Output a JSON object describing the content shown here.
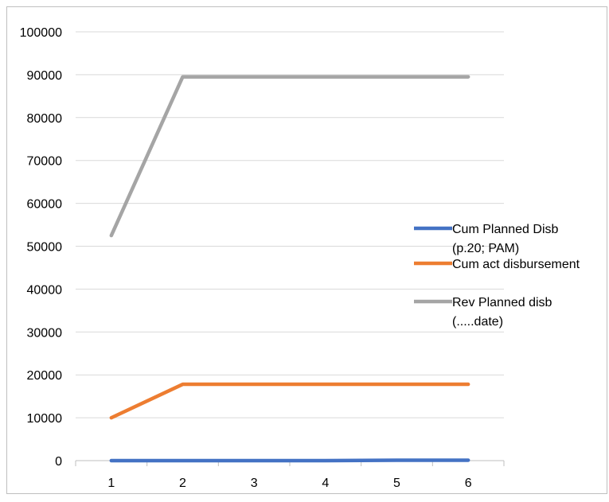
{
  "chart_data": {
    "type": "line",
    "title": "",
    "xlabel": "",
    "ylabel": "",
    "x": [
      1,
      2,
      3,
      4,
      5,
      6
    ],
    "x_tick_labels": [
      "1",
      "2",
      "3",
      "4",
      "5",
      "6"
    ],
    "ylim": [
      0,
      100000
    ],
    "y_ticks": [
      0,
      10000,
      20000,
      30000,
      40000,
      50000,
      60000,
      70000,
      80000,
      90000,
      100000
    ],
    "y_tick_labels": [
      "0",
      "10000",
      "20000",
      "30000",
      "40000",
      "50000",
      "60000",
      "70000",
      "80000",
      "90000",
      "100000"
    ],
    "grid": "horizontal",
    "legend_position": "right",
    "series": [
      {
        "name_lines": [
          "Cum Planned Disb",
          "(p.20; PAM)"
        ],
        "values": [
          0,
          0,
          0,
          0,
          100,
          100
        ],
        "color": "#4472C4"
      },
      {
        "name_lines": [
          "Cum act disbursement"
        ],
        "values": [
          10000,
          17800,
          17800,
          17800,
          17800,
          17800
        ],
        "color": "#ED7D31"
      },
      {
        "name_lines": [
          "Rev Planned disb",
          "(.....date)"
        ],
        "values": [
          52500,
          89500,
          89500,
          89500,
          89500,
          89500
        ],
        "color": "#A5A5A5"
      }
    ]
  }
}
